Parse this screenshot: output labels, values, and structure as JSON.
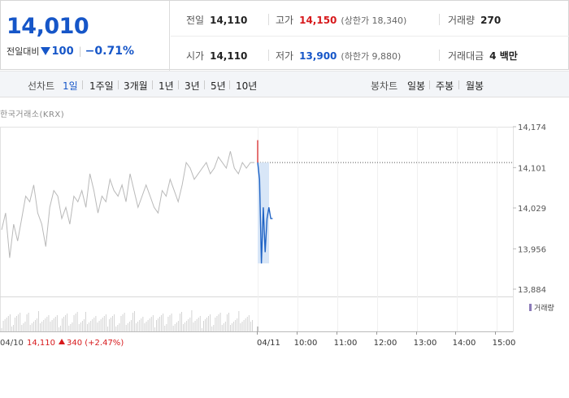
{
  "quote": {
    "current_price": "14,010",
    "change_label": "전일대비",
    "change_amount": "100",
    "change_rate": "−0.71%",
    "direction": "down"
  },
  "stats": {
    "prev_close_label": "전일",
    "prev_close": "14,110",
    "high_label": "고가",
    "high": "14,150",
    "upper_limit": "(상한가 18,340)",
    "volume_label": "거래량",
    "volume": "270",
    "open_label": "시가",
    "open": "14,110",
    "low_label": "저가",
    "low": "13,900",
    "lower_limit": "(하한가 9,880)",
    "amount_label": "거래대금",
    "amount": "4 백만"
  },
  "period_bar": {
    "line_label": "선차트",
    "line_items": [
      "1일",
      "1주일",
      "3개월",
      "1년",
      "3년",
      "5년",
      "10년"
    ],
    "active_index": 0,
    "candle_label": "봉차트",
    "candle_items": [
      "일봉",
      "주봉",
      "월봉"
    ]
  },
  "chart_data": {
    "type": "line",
    "source_label": "한국거래소(KRX)",
    "y_ticks": [
      "14,174",
      "14,101",
      "14,029",
      "13,956",
      "13,884"
    ],
    "y_range": [
      13884,
      14174
    ],
    "reference_price": 14110,
    "x_ticks": [
      "04/11",
      "10:00",
      "11:00",
      "12:00",
      "13:00",
      "14:00",
      "15:00"
    ],
    "prev_day": {
      "date": "04/10",
      "close_text": "14,110",
      "change_text": "340 (+2.47%)",
      "values": [
        13990,
        14020,
        13940,
        14000,
        13970,
        14010,
        14050,
        14040,
        14070,
        14020,
        14000,
        13960,
        14030,
        14060,
        14050,
        14010,
        14030,
        14000,
        14050,
        14040,
        14060,
        14030,
        14090,
        14060,
        14020,
        14050,
        14040,
        14080,
        14060,
        14050,
        14070,
        14040,
        14090,
        14060,
        14030,
        14050,
        14070,
        14050,
        14030,
        14020,
        14060,
        14050,
        14080,
        14060,
        14040,
        14070,
        14110,
        14100,
        14080,
        14090,
        14100,
        14110,
        14090,
        14100,
        14120,
        14110,
        14100,
        14130,
        14100,
        14090,
        14110,
        14100,
        14110,
        14110
      ]
    },
    "today": {
      "series_name": "",
      "values": [
        14110,
        14080,
        13930,
        14030,
        13950,
        14010,
        14030,
        14010,
        14010
      ]
    },
    "volume_legend": "거래량",
    "colors": {
      "today_line": "#1f63c5",
      "prev_line": "#b9b9b9",
      "up": "#d7191c",
      "down": "#1656c8",
      "fill": "#d8e6f7"
    }
  }
}
